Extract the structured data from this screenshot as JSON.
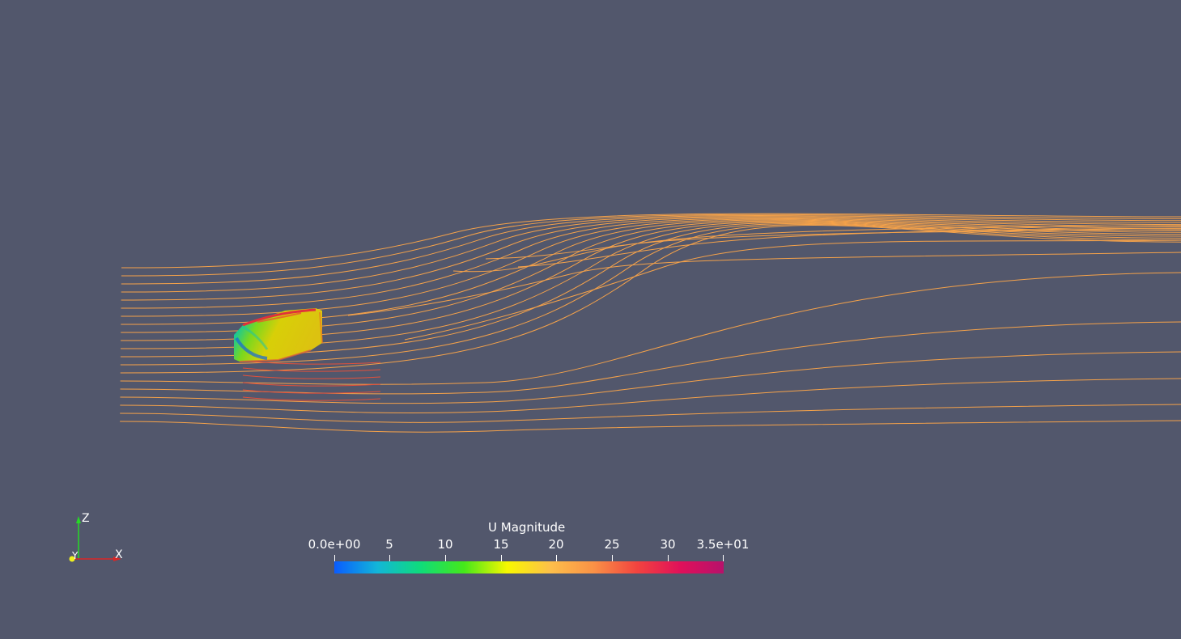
{
  "scene": {
    "background": "#52576c",
    "streamline_color": "#f5a24a"
  },
  "legend": {
    "title": "U Magnitude",
    "ticks": [
      "0.0e+00",
      "5",
      "10",
      "15",
      "20",
      "25",
      "30",
      "3.5e+01"
    ],
    "colormap": [
      "#0a5cff",
      "#12b6d8",
      "#0fdc7a",
      "#45e81a",
      "#f8f800",
      "#fdbf4a",
      "#fa9146",
      "#f2433f",
      "#e0105a",
      "#b7116b"
    ]
  },
  "orientation_axes": {
    "x_label": "X",
    "y_label": "Y",
    "z_label": "Z",
    "x_color": "#d92626",
    "y_color": "#f0f020",
    "z_color": "#26d926"
  }
}
